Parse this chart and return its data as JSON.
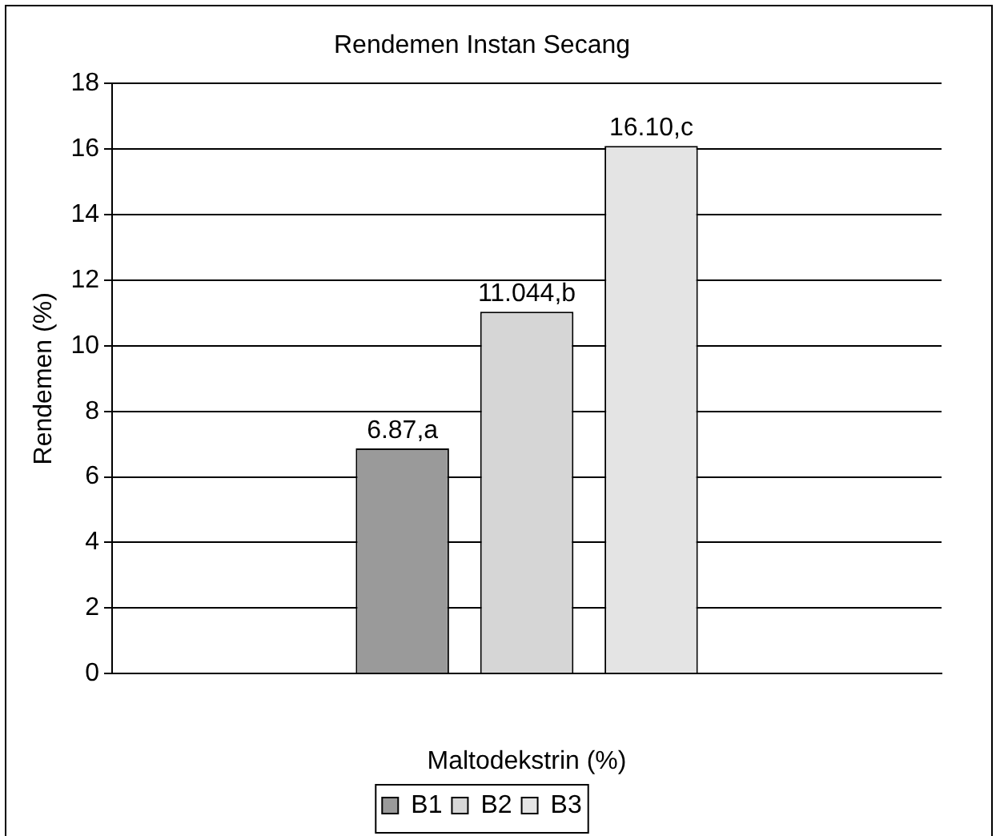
{
  "chart_data": {
    "type": "bar",
    "title": "Rendemen Instan Secang",
    "xlabel": "Maltodekstrin (%)",
    "ylabel": "Rendemen (%)",
    "categories": [
      null
    ],
    "series": [
      {
        "name": "B1",
        "color": "#9a9a9a",
        "values": [
          6.87
        ],
        "value_labels": [
          "6.87,a"
        ]
      },
      {
        "name": "B2",
        "color": "#d6d6d6",
        "values": [
          11.044
        ],
        "value_labels": [
          "11.044,b"
        ]
      },
      {
        "name": "B3",
        "color": "#e4e4e4",
        "values": [
          16.1
        ],
        "value_labels": [
          "16.10,c"
        ]
      }
    ],
    "ylim": [
      0,
      18
    ],
    "yticks": [
      0,
      2,
      4,
      6,
      8,
      10,
      12,
      14,
      16,
      18
    ],
    "grid": "y",
    "legend": "bottom"
  }
}
